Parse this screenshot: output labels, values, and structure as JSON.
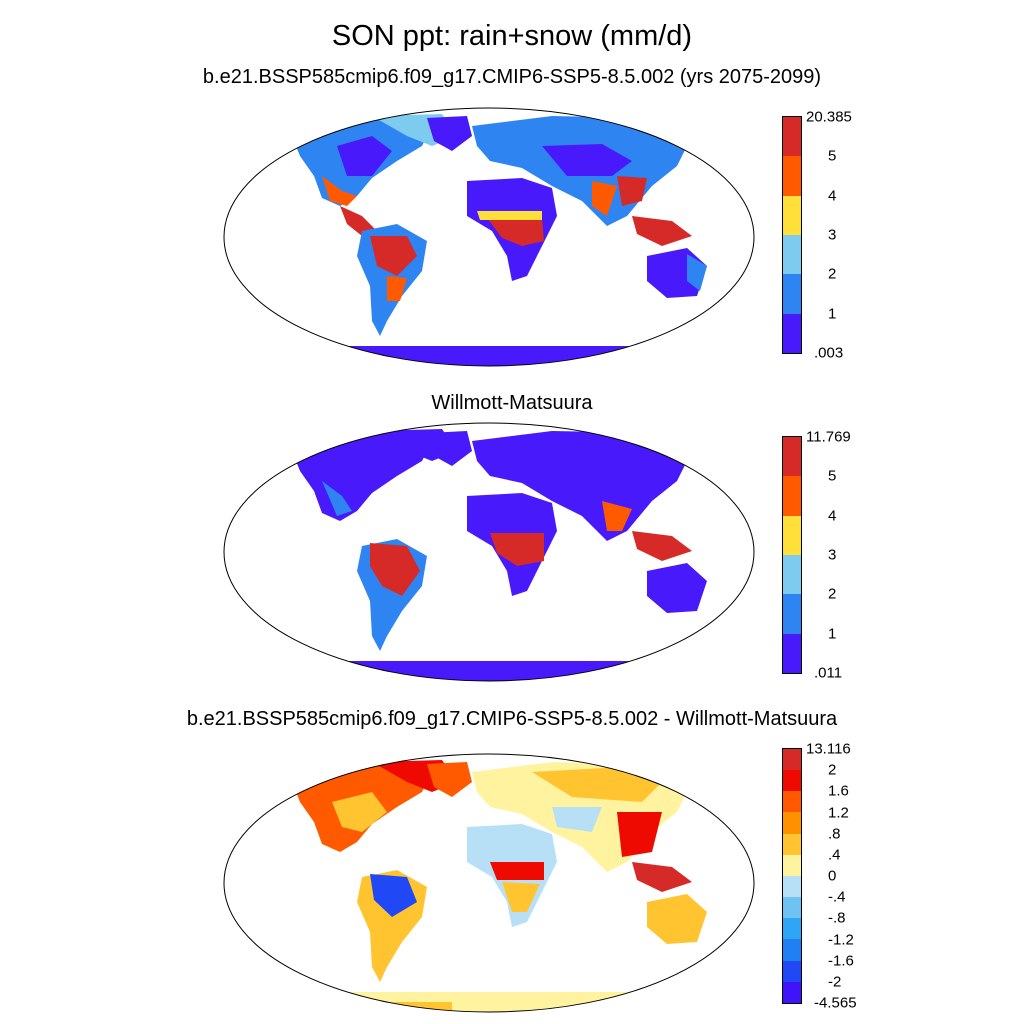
{
  "title": "SON ppt: rain+snow (mm/d)",
  "panels": [
    {
      "title": "b.e21.BSSP585cmip6.f09_g17.CMIP6-SSP5-8.5.002 (yrs 2075-2099)",
      "colorbar": {
        "labels": [
          "20.385",
          "5",
          "4",
          "3",
          "2",
          "1",
          ".003"
        ],
        "colors": [
          "#d62a28",
          "#ff5a00",
          "#ffdf3a",
          "#7ecbf0",
          "#2e85f2",
          "#4819fb"
        ]
      }
    },
    {
      "title": "Willmott-Matsuura",
      "colorbar": {
        "labels": [
          "11.769",
          "5",
          "4",
          "3",
          "2",
          "1",
          ".011"
        ],
        "colors": [
          "#d62a28",
          "#ff5a00",
          "#ffdf3a",
          "#7ecbf0",
          "#2e85f2",
          "#4819fb"
        ]
      }
    },
    {
      "title": "b.e21.BSSP585cmip6.f09_g17.CMIP6-SSP5-8.5.002 - Willmott-Matsuura",
      "colorbar": {
        "labels": [
          "13.116",
          "2",
          "1.6",
          "1.2",
          ".8",
          ".4",
          "0",
          "-.4",
          "-.8",
          "-1.2",
          "-1.6",
          "-2",
          "-4.565"
        ],
        "colors": [
          "#d62a28",
          "#ee0a00",
          "#ff5a00",
          "#ff9000",
          "#ffc430",
          "#fff3a0",
          "#b7e0f7",
          "#6ec3f3",
          "#2fa6f5",
          "#1f7ff3",
          "#2148f5",
          "#4014fb"
        ]
      }
    }
  ]
}
